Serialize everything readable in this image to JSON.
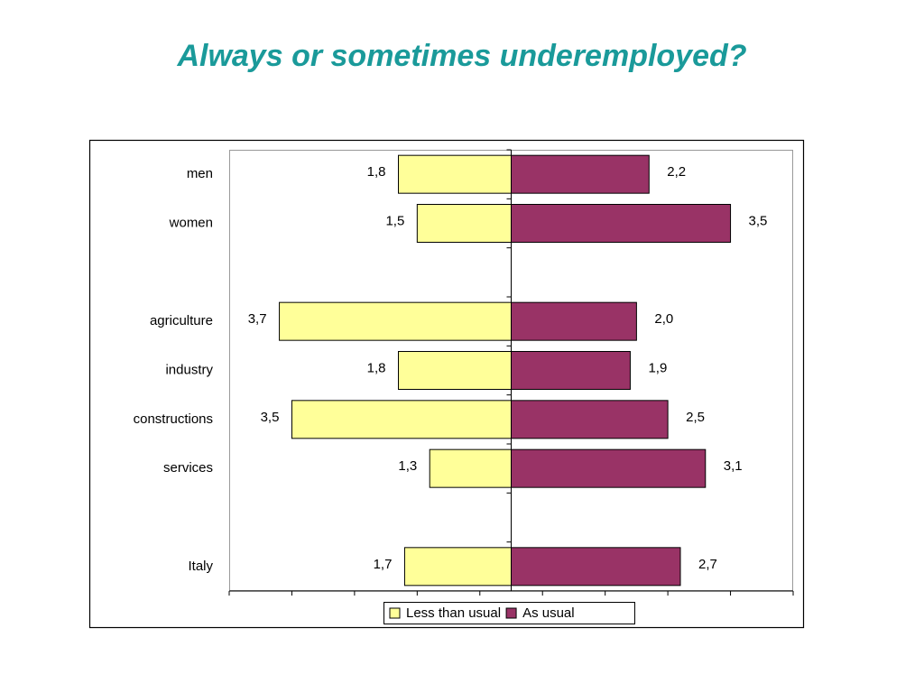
{
  "chart_data": {
    "type": "diverging-bar",
    "title": "Always or sometimes underemployed?",
    "categories": [
      "men",
      "women",
      null,
      "agriculture",
      "industry",
      "constructions",
      "services",
      null,
      "Italy"
    ],
    "series": [
      {
        "name": "Less than usual",
        "color": "#ffff99",
        "values": [
          -1.8,
          -1.5,
          null,
          -3.7,
          -1.8,
          -3.5,
          -1.3,
          null,
          -1.7
        ],
        "value_labels": [
          "1,8",
          "1,5",
          null,
          "3,7",
          "1,8",
          "3,5",
          "1,3",
          null,
          "1,7"
        ]
      },
      {
        "name": "As usual",
        "color": "#993366",
        "values": [
          2.2,
          3.5,
          null,
          2.0,
          1.9,
          2.5,
          3.1,
          null,
          2.7
        ],
        "value_labels": [
          "2,2",
          "3,5",
          null,
          "2,0",
          "1,9",
          "2,5",
          "3,1",
          null,
          "2,7"
        ]
      }
    ],
    "xlim": [
      -4.5,
      4.5
    ],
    "xticks": [
      -4.5,
      -3.5,
      -2.5,
      -1.5,
      -0.5,
      0.5,
      1.5,
      2.5,
      3.5,
      4.5
    ]
  }
}
